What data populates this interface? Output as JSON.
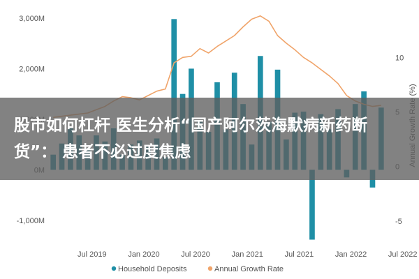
{
  "banner": {
    "title": "股市如何杠杆 医生分析“国产阿尔茨海默病新药断货”： 患者不必过度焦虑"
  },
  "colors": {
    "bars": "#1f8fa6",
    "line": "#f0a46a",
    "axis_text": "#555555",
    "banner_bg": "#5f5f5f"
  },
  "chart_data": {
    "type": "bar",
    "series": [
      {
        "name": "Household Deposits",
        "type": "bar",
        "axis": "left",
        "values": [
          300,
          520,
          820,
          680,
          430,
          680,
          560,
          820,
          300,
          500,
          580,
          450,
          620,
          250,
          2980,
          1500,
          2000,
          950,
          750,
          1730,
          800,
          1920,
          1300,
          500,
          2250,
          950,
          1980,
          600,
          1130,
          1150,
          -1380,
          1100,
          800,
          1200,
          -150,
          1300,
          1550,
          -350,
          1230
        ]
      },
      {
        "name": "Annual Growth Rate",
        "type": "line",
        "axis": "right",
        "values": [
          4.5,
          4.6,
          4.7,
          4.8,
          4.9,
          5.2,
          5.5,
          6.0,
          6.4,
          6.3,
          6.1,
          6.5,
          6.9,
          7.1,
          9.5,
          10.0,
          10.1,
          10.8,
          10.4,
          11.0,
          11.5,
          12.0,
          12.8,
          13.5,
          13.8,
          13.3,
          12.0,
          11.3,
          10.7,
          10.0,
          9.5,
          8.9,
          8.3,
          7.6,
          6.5,
          6.0,
          5.7,
          5.5,
          5.6
        ]
      }
    ],
    "x_tick_labels": [
      "Jul 2019",
      "Jan 2020",
      "Jul 2020",
      "Jan 2021",
      "Jul 2021",
      "Jan 2022",
      "Jul 2022"
    ],
    "x_tick_index": [
      5,
      11,
      17,
      23,
      29,
      35,
      41
    ],
    "y_left": {
      "ticks": [
        -1000,
        0,
        1000,
        2000,
        3000
      ],
      "tick_labels": [
        "-1,000M",
        "0M",
        "1,000M",
        "2,000M",
        "3,000M"
      ],
      "range": [
        -1400,
        3150
      ]
    },
    "y_right": {
      "ticks": [
        -5,
        0,
        5,
        10
      ],
      "tick_labels": [
        "-5",
        "0",
        "5",
        "10"
      ],
      "range": [
        -6.8,
        14.3
      ],
      "label": "Annual Growth Rate (%)"
    },
    "legend": {
      "position": "bottom"
    },
    "grid": false
  }
}
